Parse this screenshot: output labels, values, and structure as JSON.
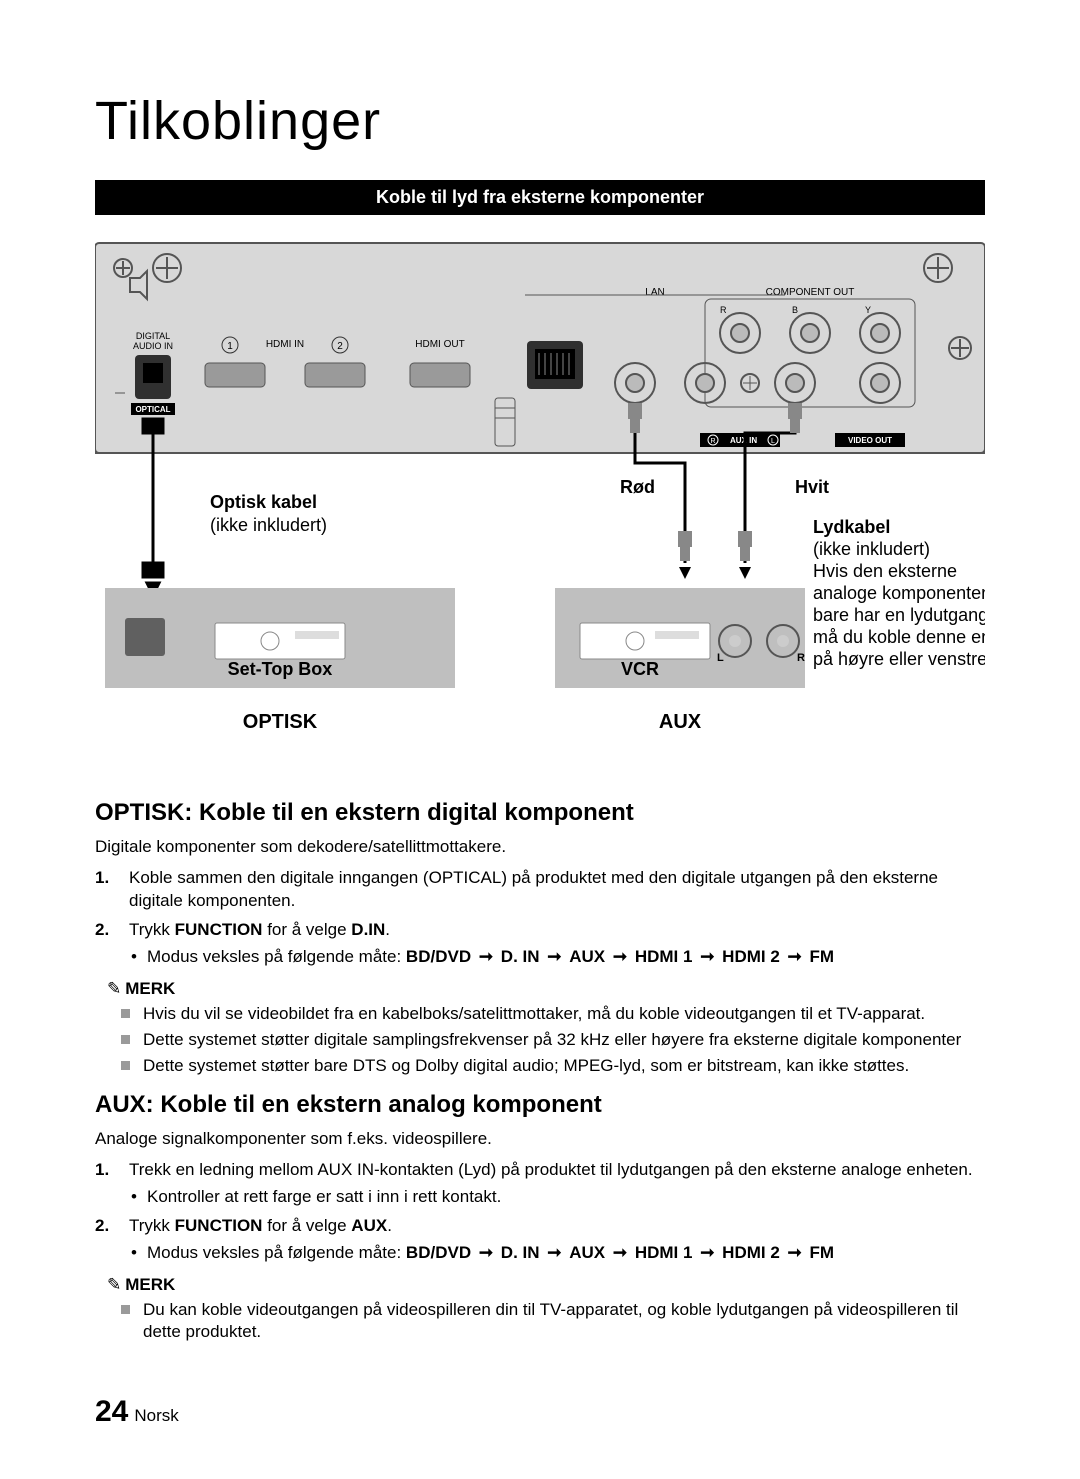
{
  "page": {
    "title": "Tilkoblinger",
    "section_bar": "Koble til lyd fra eksterne komponenter",
    "page_number": "24",
    "language": "Norsk"
  },
  "diagram": {
    "panel": {
      "fill": "#d8d8d8",
      "stroke": "#6b6b6b",
      "lan_label": "LAN",
      "component_out": "COMPONENT OUT",
      "digital_audio_in": "DIGITAL\nAUDIO IN",
      "hdmi_in": "HDMI IN",
      "hdmi_out": "HDMI OUT",
      "aux_in": "AUX IN",
      "video_out": "VIDEO OUT",
      "optical": "OPTICAL",
      "circ_1": "1",
      "circ_2": "2",
      "rgb_R": "R",
      "rgb_B": "B",
      "rgb_Y": "Y"
    },
    "labels": {
      "rod": "Rød",
      "hvit": "Hvit",
      "optisk_kabel": "Optisk kabel",
      "optisk_kabel_sub": "(ikke inkludert)",
      "lydkabel": "Lydkabel",
      "lydkabel_sub": "(ikke inkludert)",
      "lyd_extra_1": "Hvis den eksterne",
      "lyd_extra_2": "analoge komponenten",
      "lyd_extra_3": "bare har en lydutgang,",
      "lyd_extra_4": "må du koble denne enten",
      "lyd_extra_5": "på høyre eller venstre.",
      "set_top_box": "Set-Top Box",
      "vcr": "VCR",
      "optisk_big": "OPTISK",
      "aux_big": "AUX",
      "L": "L",
      "R": "R"
    },
    "colors": {
      "box_fill": "#bfbfbf",
      "device_fill": "#ffffff",
      "text": "#000000",
      "red": "#ff0000",
      "white_jack": "#ffffff",
      "jack_stroke": "#555555"
    }
  },
  "optisk": {
    "heading": "OPTISK: Koble til en ekstern digital komponent",
    "lead": "Digitale komponenter som dekodere/satellittmottakere.",
    "step1": "Koble sammen den digitale inngangen (OPTICAL) på produktet med den digitale utgangen på den eksterne digitale komponenten.",
    "step2_pre": "Trykk ",
    "step2_func": "FUNCTION",
    "step2_mid": " for å velge ",
    "step2_val": "D.IN",
    "step2_post": ".",
    "mode_intro": "Modus veksles på følgende måte: ",
    "modes": [
      "BD/DVD",
      "D. IN",
      "AUX",
      "HDMI 1",
      "HDMI 2",
      "FM"
    ],
    "merk_label": "MERK",
    "notes": [
      "Hvis du vil se videobildet fra en kabelboks/satelittmottaker, må du koble videoutgangen til et TV-apparat.",
      "Dette systemet støtter digitale samplingsfrekvenser på 32 kHz eller høyere fra eksterne digitale komponenter",
      "Dette systemet støtter bare DTS og Dolby digital audio; MPEG-lyd, som er bitstream, kan ikke støttes."
    ]
  },
  "aux": {
    "heading": "AUX: Koble til en ekstern analog komponent",
    "lead": "Analoge signalkomponenter som f.eks. videospillere.",
    "step1": "Trekk en ledning mellom AUX IN-kontakten (Lyd) på produktet til lydutgangen på den eksterne analoge enheten.",
    "step1_bullet": "Kontroller at rett farge er satt i inn i rett kontakt.",
    "step2_pre": "Trykk ",
    "step2_func": "FUNCTION",
    "step2_mid": " for å velge ",
    "step2_val": "AUX",
    "step2_post": ".",
    "mode_intro": "Modus veksles på følgende måte: ",
    "modes": [
      "BD/DVD",
      "D. IN",
      "AUX",
      "HDMI 1",
      "HDMI 2",
      "FM"
    ],
    "merk_label": "MERK",
    "notes": [
      "Du kan koble videoutgangen på videospilleren din til TV-apparatet, og koble lydutgangen på videospilleren til dette produktet."
    ]
  }
}
